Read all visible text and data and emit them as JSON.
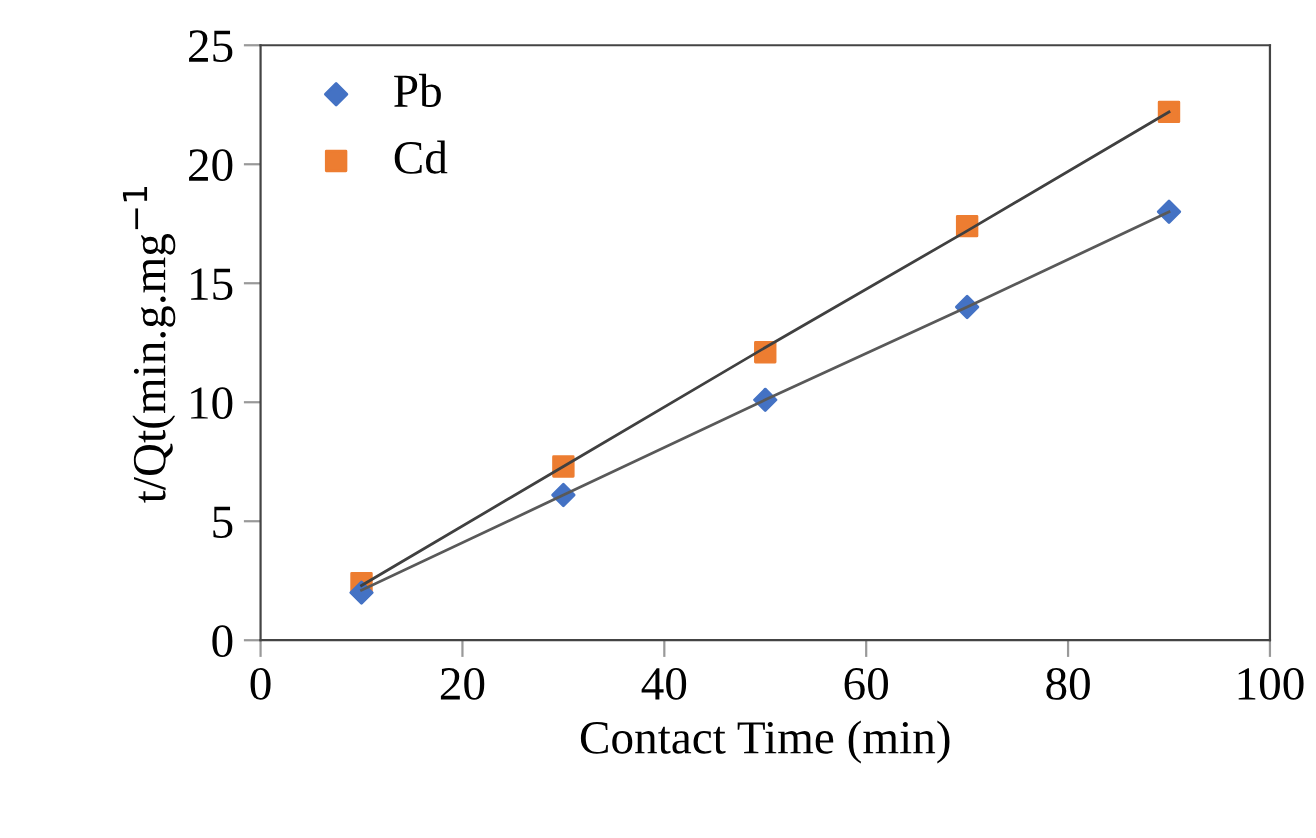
{
  "chart_data": {
    "type": "scatter",
    "xlabel": "Contact Time (min)",
    "ylabel": "t/Qt(min.g.mg$^{−1}$",
    "x": [
      10,
      30,
      50,
      70,
      90
    ],
    "series": [
      {
        "name": "Pb",
        "color": "#4472c4",
        "marker": "diamond",
        "values": [
          2.0,
          6.1,
          10.1,
          14.0,
          18.0
        ]
      },
      {
        "name": "Cd",
        "color": "#ed7d31",
        "marker": "square",
        "values": [
          2.4,
          7.3,
          12.1,
          17.4,
          22.2
        ]
      },
      {
        "type": "line",
        "color": "#595959",
        "values": [
          2.1,
          6.1,
          10.1,
          14.0,
          18.0
        ]
      },
      {
        "type": "line",
        "color": "#404040",
        "values": [
          2.3,
          7.3,
          12.3,
          17.2,
          22.2
        ]
      }
    ],
    "xlim": [
      0,
      100
    ],
    "xticks": [
      0,
      20,
      40,
      60,
      80,
      100
    ],
    "ylim": [
      0,
      25
    ],
    "yticks": [
      0,
      5,
      10,
      15,
      20,
      25
    ],
    "grid": false,
    "legend": "top left"
  }
}
